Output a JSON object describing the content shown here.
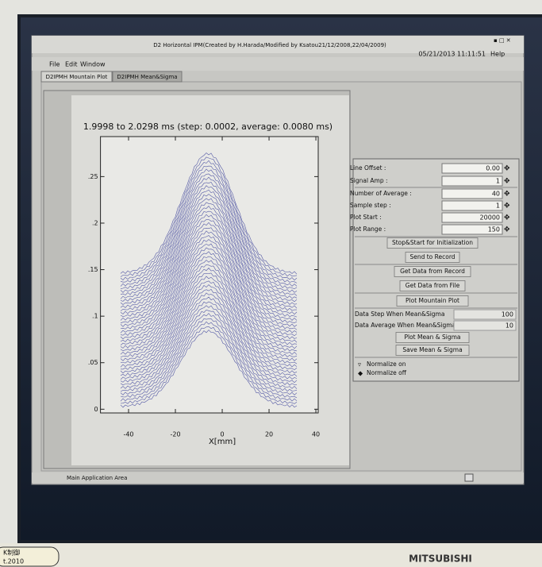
{
  "window": {
    "title": "D2 Horizontal IPM(Created by H.Harada/Modified by Ksatou21/12/2008,22/04/2009)",
    "datetime": "05/21/2013 11:11:51",
    "help": "Help"
  },
  "menu": [
    "File",
    "Edit",
    "Window"
  ],
  "tabs": [
    "D2IPMH Mountain Plot",
    "D2IPMH Mean&Sigma"
  ],
  "plot": {
    "title": "1.9998 to 2.0298 ms (step: 0.0002, average: 0.0080 ms)",
    "xlabel": "X[mm]",
    "xlim": [
      -52,
      41
    ],
    "ylim": [
      -0.004,
      0.293
    ],
    "xticks": [
      -40,
      -20,
      0,
      20,
      40
    ],
    "yticks": [
      0,
      {
        "value": 0.05,
        "label": ".05"
      },
      {
        "value": 0.1,
        "label": ".1"
      },
      {
        "value": 0.15,
        "label": ".15"
      },
      {
        "value": 0.2,
        "label": ".2"
      },
      {
        "value": 0.25,
        "label": ".25"
      }
    ]
  },
  "fields": [
    {
      "label": "Line Offset :",
      "value": "0.00"
    },
    {
      "label": "Signal Amp :",
      "value": "1"
    },
    {
      "label": "Number of Average :",
      "value": "40"
    },
    {
      "label": "Sample step :",
      "value": "1"
    },
    {
      "label": "Plot Start :",
      "value": "20000"
    },
    {
      "label": "Plot Range :",
      "value": "150"
    }
  ],
  "buttons": [
    "Stop&Start for Initialization",
    "Send to Record",
    "Get Data from Record",
    "Get Data from File",
    "Plot Mountain Plot"
  ],
  "params": [
    {
      "label": "Data Step When Mean&Sigma",
      "value": 100
    },
    {
      "label": "Data Average When Mean&Sigma",
      "value": 10
    }
  ],
  "stat_buttons": [
    "Plot Mean & Sigma",
    "Save Mean & Sigma"
  ],
  "radios": [
    "Normalize on",
    "Normalize off"
  ],
  "status": "Main Application Area",
  "bezel": {
    "sticker": [
      "K制御",
      "t.2010"
    ],
    "brand": "MITSUBISHI"
  }
}
